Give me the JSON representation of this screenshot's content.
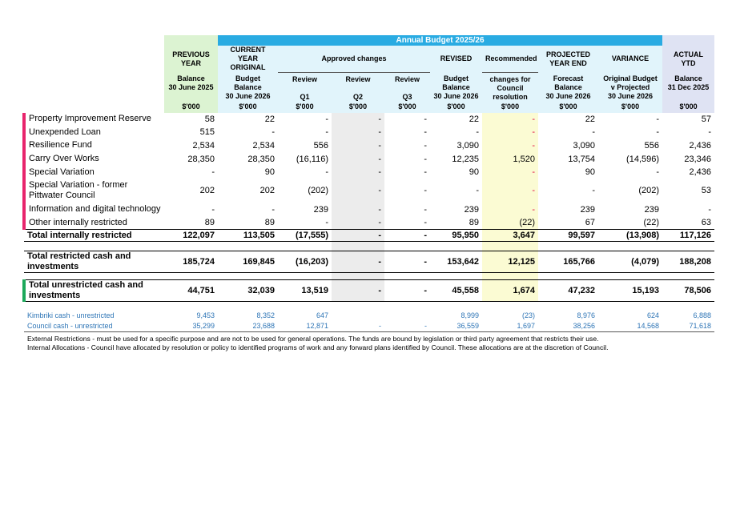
{
  "header": {
    "group_title": "Annual Budget 2025/26",
    "approved_changes": "Approved changes",
    "columns": [
      {
        "head": [
          "PREVIOUS",
          "YEAR"
        ],
        "sub": [
          "Balance",
          "30 June 2025"
        ],
        "unit": "$'000"
      },
      {
        "head": [
          "CURRENT YEAR",
          "ORIGINAL"
        ],
        "sub": [
          "Budget",
          "Balance",
          "30 June 2026"
        ],
        "unit": "$'000"
      },
      {
        "sub": [
          "Review",
          "Q1"
        ],
        "unit": "$'000"
      },
      {
        "sub": [
          "Review",
          "Q2"
        ],
        "unit": "$'000"
      },
      {
        "sub": [
          "Review",
          "Q3"
        ],
        "unit": "$'000"
      },
      {
        "head": [
          "REVISED"
        ],
        "sub": [
          "Budget",
          "Balance",
          "30 June 2026"
        ],
        "unit": "$'000"
      },
      {
        "head": [
          "Recommended"
        ],
        "sub": [
          "changes for",
          "Council",
          "resolution"
        ],
        "unit": "$'000"
      },
      {
        "head": [
          "PROJECTED",
          "YEAR END"
        ],
        "sub": [
          "Forecast",
          "Balance",
          "30 June 2026"
        ],
        "unit": "$'000"
      },
      {
        "head": [
          "VARIANCE"
        ],
        "sub": [
          "Original Budget",
          "v Projected",
          "30 June 2026"
        ],
        "unit": "$'000"
      },
      {
        "head": [
          "ACTUAL YTD"
        ],
        "sub": [
          "Balance",
          "31 Dec 2025"
        ],
        "unit": "$'000"
      }
    ]
  },
  "internally_restricted": {
    "rows": [
      {
        "label": "Property Improvement Reserve",
        "values": [
          "58",
          "22",
          "-",
          "-",
          "-",
          "22",
          "-",
          "22",
          "-",
          "57"
        ]
      },
      {
        "label": "Unexpended Loan",
        "values": [
          "515",
          "-",
          "-",
          "-",
          "-",
          "-",
          "-",
          "-",
          "-",
          "-"
        ]
      },
      {
        "label": "Resilience Fund",
        "values": [
          "2,534",
          "2,534",
          "556",
          "-",
          "-",
          "3,090",
          "-",
          "3,090",
          "556",
          "2,436"
        ]
      },
      {
        "label": "Carry Over Works",
        "values": [
          "28,350",
          "28,350",
          "(16,116)",
          "-",
          "-",
          "12,235",
          "1,520",
          "13,754",
          "(14,596)",
          "23,346"
        ]
      },
      {
        "label": "Special Variation",
        "values": [
          "-",
          "90",
          "-",
          "-",
          "-",
          "90",
          "-",
          "90",
          "-",
          "2,436"
        ]
      },
      {
        "label": "Special Variation - former Pittwater Council",
        "values": [
          "202",
          "202",
          "(202)",
          "-",
          "-",
          "-",
          "-",
          "-",
          "(202)",
          "53"
        ]
      },
      {
        "label": "Information and digital technology",
        "values": [
          "-",
          "-",
          "239",
          "-",
          "-",
          "239",
          "-",
          "239",
          "239",
          "-"
        ]
      },
      {
        "label": "Other internally restricted",
        "values": [
          "89",
          "89",
          "-",
          "-",
          "-",
          "89",
          "(22)",
          "67",
          "(22)",
          "63"
        ]
      }
    ],
    "total": {
      "label": "Total internally restricted",
      "values": [
        "122,097",
        "113,505",
        "(17,555)",
        "-",
        "-",
        "95,950",
        "3,647",
        "99,597",
        "(13,908)",
        "117,126"
      ]
    }
  },
  "total_restricted": {
    "label": "Total restricted cash and investments",
    "values": [
      "185,724",
      "169,845",
      "(16,203)",
      "-",
      "-",
      "153,642",
      "12,125",
      "165,766",
      "(4,079)",
      "188,208"
    ]
  },
  "total_unrestricted": {
    "label": "Total unrestricted cash and investments",
    "values": [
      "44,751",
      "32,039",
      "13,519",
      "-",
      "-",
      "45,558",
      "1,674",
      "47,232",
      "15,193",
      "78,506"
    ]
  },
  "unrestricted_detail": [
    {
      "label": "Kimbriki cash - unrestricted",
      "values": [
        "9,453",
        "8,352",
        "647",
        null,
        null,
        "8,999",
        "(23)",
        "8,976",
        "624",
        "6,888"
      ]
    },
    {
      "label": "Council cash - unrestricted",
      "values": [
        "35,299",
        "23,688",
        "12,871",
        "-",
        "-",
        "36,559",
        "1,697",
        "38,256",
        "14,568",
        "71,618"
      ]
    }
  ],
  "footnotes": [
    "External Restrictions - must be used for a specific purpose and are not to be used for general operations.  The funds are bound by legislation or third party agreement that restricts their use.",
    "Internal Allocations - Council have allocated by resolution or policy to identified programs of work and any forward plans identified by Council.  These allocations are at the discretion of Council."
  ]
}
